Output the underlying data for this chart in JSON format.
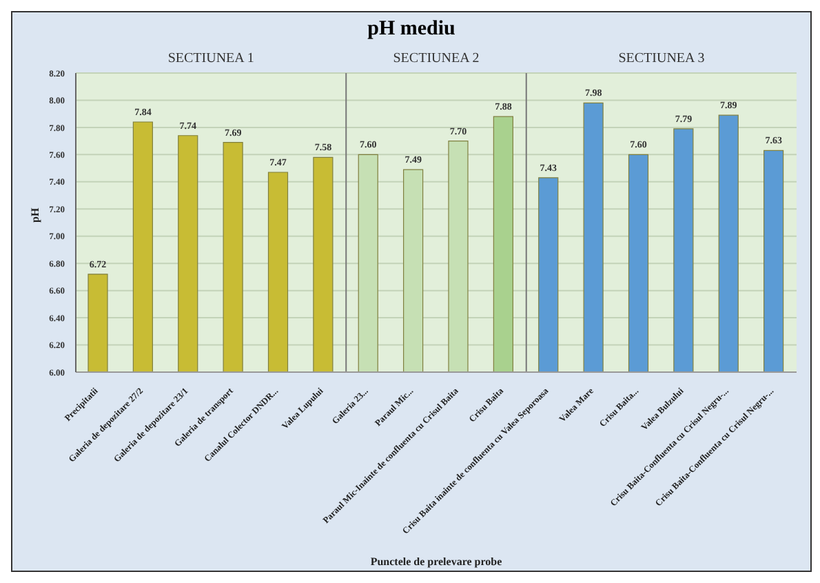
{
  "chart_data": {
    "type": "bar",
    "title": "pH mediu",
    "xlabel": "Punctele de prelevare probe",
    "ylabel": "pH",
    "categories": [
      "Precipitatii",
      "Galeria  de depozitare  27/2",
      "Galeria de depozitare 23/1",
      "Galeria de transport",
      "Canalul Colector DNDR...",
      "Valea Lupului",
      "Galeria 23...",
      "Paraul Mic...",
      "Paraul Mic-Inainte de confluenta cu Crisul Baita",
      "Crisu Baita",
      "Crisu Baita inainte de confluenta cu Valea Seporoasa",
      "Valea Mare",
      "Crisu Baita...",
      "Valea Bulzului",
      "Crisu Baita-Confluenta cu Crisul Negru-...",
      "Crisu Baita-Confluenta cu Crisul Negru-..."
    ],
    "values": [
      6.72,
      7.84,
      7.74,
      7.69,
      7.47,
      7.58,
      7.6,
      7.49,
      7.7,
      7.88,
      7.43,
      7.98,
      7.6,
      7.79,
      7.89,
      7.63
    ],
    "value_labels": [
      "6.72",
      "7.84",
      "7.74",
      "7.69",
      "7.47",
      "7.58",
      "7.60",
      "7.49",
      "7.70",
      "7.88",
      "7.43",
      "7.98",
      "7.60",
      "7.79",
      "7.89",
      "7.63"
    ],
    "colors": [
      "#c8bc34",
      "#c8bc34",
      "#c8bc34",
      "#c8bc34",
      "#c8bc34",
      "#c8bc34",
      "#c6e0b4",
      "#c6e0b4",
      "#c6e0b4",
      "#a9d18e",
      "#5b9bd5",
      "#5b9bd5",
      "#5b9bd5",
      "#5b9bd5",
      "#5b9bd5",
      "#5b9bd5"
    ],
    "ylim": [
      6,
      8.2
    ],
    "yticks": [
      {
        "value": 6,
        "label": "6.00"
      },
      {
        "value": 6.2,
        "label": "6.20"
      },
      {
        "value": 6.4,
        "label": "6.40"
      },
      {
        "value": 6.6,
        "label": "6.60"
      },
      {
        "value": 6.8,
        "label": "6.80"
      },
      {
        "value": 7,
        "label": "7.00"
      },
      {
        "value": 7.2,
        "label": "7.20"
      },
      {
        "value": 7.4,
        "label": "7.40"
      },
      {
        "value": 7.6,
        "label": "7.60"
      },
      {
        "value": 7.8,
        "label": "7.80"
      },
      {
        "value": 8,
        "label": "8.00"
      },
      {
        "value": 8.2,
        "label": "8.20"
      }
    ],
    "annotations": [
      "SECTIUNEA 1",
      "SECTIUNEA 2",
      "SECTIUNEA 3"
    ],
    "grid": "y",
    "legend": false
  }
}
